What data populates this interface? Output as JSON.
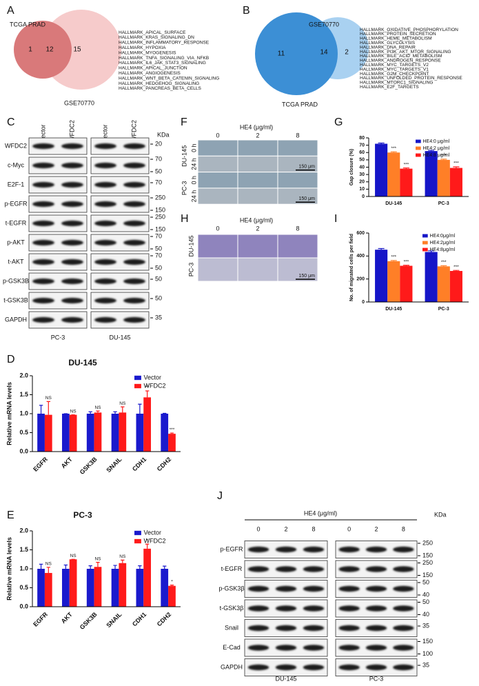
{
  "venns": [
    {
      "label": "A",
      "sets": [
        "TCGA PRAD",
        "GSE70770"
      ],
      "counts": [
        1,
        12,
        15
      ],
      "colors": [
        "#d9797a",
        "#f6cbcb"
      ],
      "term_color": "#c4504d",
      "terms": [
        "HALLMARK_APICAL_SURFACE",
        "HALLMARK_KRAS_SIGNALING_DN",
        "HALLMARK_INFLAMMATORY_RESPONSE",
        "HALLMARK_HYPOXIA",
        "HALLMARK_MYOGENESIS",
        "HALLMARK_TNFA_SIGNALING_VIA_NFKB",
        "HALLMARK_IL6_JAK_STAT3_SIGNALING",
        "HALLMARK_APICAL_JUNCTION",
        "HALLMARK_ANGIOGENESIS",
        "HALLMARK_WNT_BETA_CATENIN_SIGNALING",
        "HALLMARK_HEDGEHOG_SIGNALING",
        "HALLMARK_PANCREAS_BETA_CELLS"
      ]
    },
    {
      "label": "B",
      "sets": [
        "TCGA PRAD",
        "GSE70770"
      ],
      "counts": [
        11,
        14,
        2
      ],
      "colors": [
        "#3c8fd5",
        "#a9d1f1"
      ],
      "term_color": "#3a8dd0",
      "terms": [
        "HALLMARK_OXIDATIVE_PHOSPHORYLATION",
        "HALLMARK_PROTEIN_SECRETION",
        "HALLMARK_HEME_METABOLISM",
        "HALLMARK_GLYCOLYSIS",
        "HALLMARK_DNA_REPAIR",
        "HALLMARK_PI3K_AKT_MTOR_SIGNALING",
        "HALLMARK_BILE_ACID_METABOLISM",
        "HALLMARK_ANDROGEN_RESPONSE",
        "HALLMARK_MYC_TARGETS_V2",
        "HALLMARK_MYC_TARGETS_V1",
        "HALLMARK_G2M_CHECKPOINT",
        "HALLMARK_UNFOLDED_PROTEIN_RESPONSE",
        "HALLMARK_MTORC1_SIGNALING",
        "HALLMARK_E2F_TARGETS"
      ]
    }
  ],
  "blots": [
    {
      "label": "C",
      "lanes": [
        "Vector",
        "WFDC2",
        "Vector",
        "WFDC2"
      ],
      "unit": "KDa",
      "groups": [
        "PC-3",
        "DU-145"
      ],
      "rows": [
        {
          "name": "WFDC2",
          "markers": [
            20
          ]
        },
        {
          "name": "c-Myc",
          "markers": [
            70,
            50
          ]
        },
        {
          "name": "E2F-1",
          "markers": [
            70
          ]
        },
        {
          "name": "p-EGFR",
          "markers": [
            250,
            150
          ]
        },
        {
          "name": "t-EGFR",
          "markers": [
            250,
            150
          ]
        },
        {
          "name": "p-AKT",
          "markers": [
            70,
            50
          ]
        },
        {
          "name": "t-AKT",
          "markers": [
            70,
            50
          ]
        },
        {
          "name": "p-GSK3B",
          "markers": [
            50
          ]
        },
        {
          "name": "t-GSK3B",
          "markers": [
            50
          ]
        },
        {
          "name": "GAPDH",
          "markers": [
            35
          ]
        }
      ]
    },
    {
      "label": "J",
      "title": "HE4 (μg/ml)",
      "lanes": [
        "0",
        "2",
        "8",
        "0",
        "2",
        "8"
      ],
      "unit": "KDa",
      "groups": [
        "DU-145",
        "PC-3"
      ],
      "rows": [
        {
          "name": "p-EGFR",
          "markers": [
            250,
            150
          ]
        },
        {
          "name": "t-EGFR",
          "markers": [
            250,
            150
          ]
        },
        {
          "name": "p-GSK3β",
          "markers": [
            50,
            40
          ]
        },
        {
          "name": "t-GSK3β",
          "markers": [
            50,
            40
          ]
        },
        {
          "name": "Snail",
          "markers": [
            35
          ]
        },
        {
          "name": "E-Cad",
          "markers": [
            150,
            100
          ]
        },
        {
          "name": "GAPDH",
          "markers": [
            35
          ]
        }
      ]
    }
  ],
  "micrographs": [
    {
      "label": "F",
      "title": "HE4 (μg/ml)",
      "columns": [
        "0",
        "2",
        "8"
      ],
      "groups": [
        {
          "name": "DU-145",
          "rows": [
            "0 h",
            "24 h"
          ]
        },
        {
          "name": "PC-3",
          "rows": [
            "0 h",
            "24 h"
          ]
        }
      ],
      "scale_bar": "150 μm"
    },
    {
      "label": "H",
      "title": "HE4 (μg/ml)",
      "columns": [
        "0",
        "2",
        "8"
      ],
      "groups": [
        {
          "name": "DU-145"
        },
        {
          "name": "PC-3"
        }
      ],
      "scale_bar": "150 μm"
    }
  ],
  "chart_data": [
    {
      "type": "bar",
      "label": "D",
      "title": "DU-145",
      "ylabel": "Relative mRNA levels",
      "categories": [
        "EGFR",
        "AKT",
        "GSK3B",
        "SNAIL",
        "CDH1",
        "CDH2"
      ],
      "series": [
        {
          "name": "Vector",
          "color": "#1a1acd",
          "values": [
            1.0,
            1.0,
            1.0,
            1.0,
            1.0,
            1.0
          ],
          "errors": [
            0.22,
            0.0,
            0.05,
            0.05,
            0.25,
            0.01
          ],
          "significance": [
            null,
            null,
            null,
            null,
            null,
            null
          ]
        },
        {
          "name": "WFDC2",
          "color": "#ff1a1a",
          "values": [
            0.97,
            0.97,
            1.03,
            1.03,
            1.43,
            0.47
          ],
          "errors": [
            0.35,
            0.0,
            0.04,
            0.15,
            0.17,
            0.02
          ],
          "significance": [
            "NS",
            "NS",
            "NS",
            "NS",
            "**",
            "***"
          ]
        }
      ],
      "ylim": [
        0,
        2
      ],
      "yticks": [
        {
          "value": 0,
          "label": "0.0"
        },
        {
          "value": 0.5,
          "label": "0.5"
        },
        {
          "value": 1,
          "label": "1.0"
        },
        {
          "value": 1.5,
          "label": "1.5"
        },
        {
          "value": 2,
          "label": "2.0"
        }
      ],
      "legend": "upper right"
    },
    {
      "type": "bar",
      "label": "E",
      "title": "PC-3",
      "ylabel": "Relative mRNA levels",
      "categories": [
        "EGFR",
        "AKT",
        "GSK3B",
        "SNAIL",
        "CDH1",
        "CDH2"
      ],
      "series": [
        {
          "name": "Vector",
          "color": "#1a1acd",
          "values": [
            1.0,
            1.0,
            1.0,
            1.0,
            1.0,
            1.0
          ],
          "errors": [
            0.12,
            0.1,
            0.08,
            0.09,
            0.08,
            0.07
          ],
          "significance": [
            null,
            null,
            null,
            null,
            null,
            null
          ]
        },
        {
          "name": "WFDC2",
          "color": "#ff1a1a",
          "values": [
            0.89,
            1.25,
            1.05,
            1.15,
            1.53,
            0.55
          ],
          "errors": [
            0.15,
            0.0,
            0.12,
            0.08,
            0.12,
            0.02
          ],
          "significance": [
            "NS",
            "NS",
            "NS",
            "NS",
            "*",
            "*"
          ]
        }
      ],
      "ylim": [
        0,
        2
      ],
      "yticks": [
        {
          "value": 0,
          "label": "0.0"
        },
        {
          "value": 0.5,
          "label": "0.5"
        },
        {
          "value": 1,
          "label": "1.0"
        },
        {
          "value": 1.5,
          "label": "1.5"
        },
        {
          "value": 2,
          "label": "2.0"
        }
      ],
      "legend": "upper right"
    },
    {
      "type": "bar",
      "label": "G",
      "ylabel": "Gap closure (%)",
      "categories": [
        "DU-145",
        "PC-3"
      ],
      "series": [
        {
          "name": "HE4:0 μg/ml",
          "color": "#1515c8",
          "values": [
            72,
            62
          ],
          "errors": [
            1,
            1
          ],
          "significance": [
            null,
            null
          ]
        },
        {
          "name": "HE4:2 μg/ml",
          "color": "#ff7f27",
          "values": [
            60,
            50
          ],
          "errors": [
            1,
            1
          ],
          "significance": [
            "***",
            "***"
          ]
        },
        {
          "name": "HE4:8 μg/ml",
          "color": "#ff1a1a",
          "values": [
            38,
            39
          ],
          "errors": [
            1,
            1.5
          ],
          "significance": [
            "***",
            "***"
          ]
        }
      ],
      "ylim": [
        0,
        80
      ],
      "yticks": [
        0,
        10,
        20,
        30,
        40,
        50,
        60,
        70,
        80
      ],
      "legend": "upper right"
    },
    {
      "type": "bar",
      "label": "I",
      "ylabel": "No. of migrated cells per field",
      "categories": [
        "DU-145",
        "PC-3"
      ],
      "series": [
        {
          "name": "HE4:0μg/ml",
          "color": "#1515c8",
          "values": [
            455,
            435
          ],
          "errors": [
            10,
            10
          ],
          "significance": [
            null,
            null
          ]
        },
        {
          "name": "HE4:2μg/ml",
          "color": "#ff7f27",
          "values": [
            355,
            310
          ],
          "errors": [
            6,
            6
          ],
          "significance": [
            "***",
            "***"
          ]
        },
        {
          "name": "HE4:8μg/ml",
          "color": "#ff1a1a",
          "values": [
            315,
            270
          ],
          "errors": [
            5,
            5
          ],
          "significance": [
            "***",
            "***"
          ]
        }
      ],
      "ylim": [
        0,
        600
      ],
      "yticks": [
        0,
        200,
        400,
        600
      ],
      "legend": "upper right"
    }
  ]
}
